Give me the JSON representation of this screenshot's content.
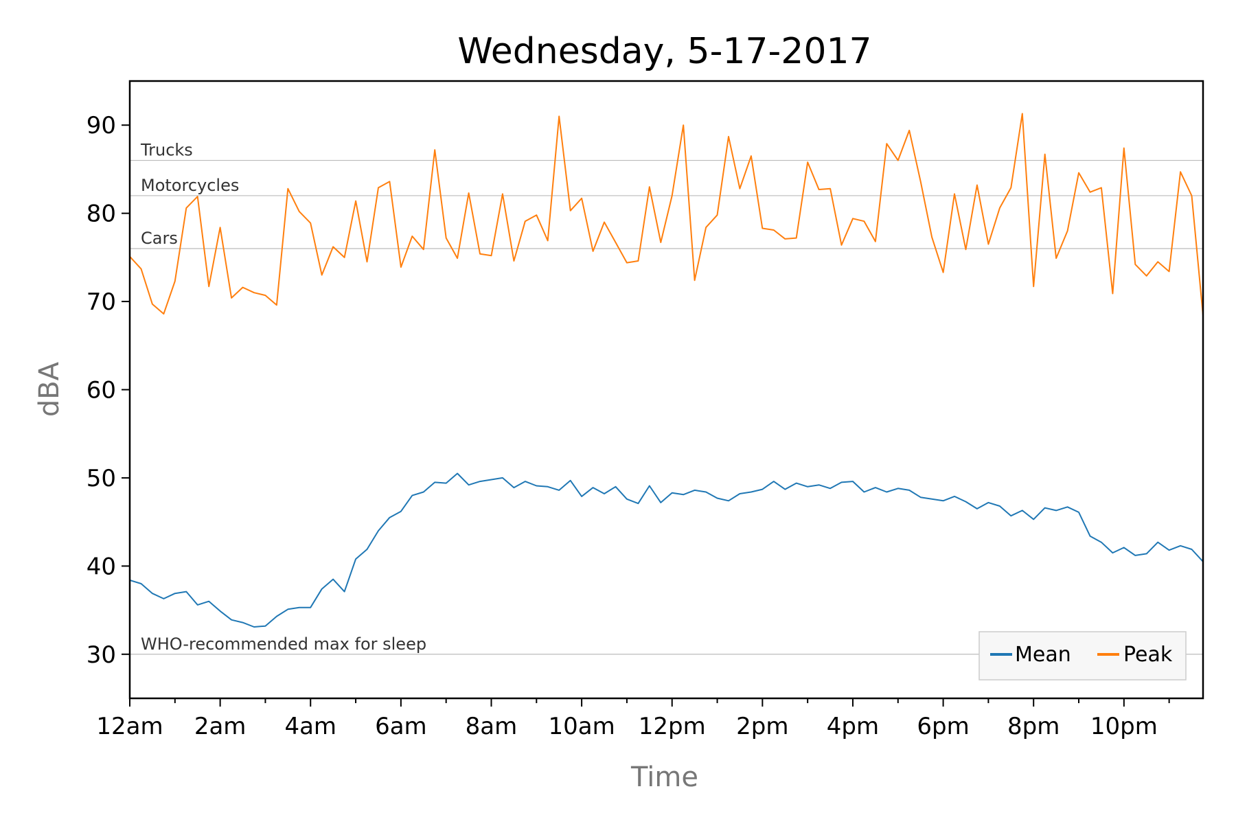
{
  "chart_data": {
    "type": "line",
    "title": "Wednesday, 5-17-2017",
    "xlabel": "Time",
    "ylabel": "dBA",
    "xlim": [
      0,
      23.75
    ],
    "ylim": [
      25,
      95
    ],
    "y_ticks": [
      30,
      40,
      50,
      60,
      70,
      80,
      90
    ],
    "x_ticks": [
      {
        "x": 0,
        "label": "12am"
      },
      {
        "x": 2,
        "label": "2am"
      },
      {
        "x": 4,
        "label": "4am"
      },
      {
        "x": 6,
        "label": "6am"
      },
      {
        "x": 8,
        "label": "8am"
      },
      {
        "x": 10,
        "label": "10am"
      },
      {
        "x": 12,
        "label": "12pm"
      },
      {
        "x": 14,
        "label": "2pm"
      },
      {
        "x": 16,
        "label": "4pm"
      },
      {
        "x": 18,
        "label": "6pm"
      },
      {
        "x": 20,
        "label": "8pm"
      },
      {
        "x": 22,
        "label": "10pm"
      }
    ],
    "grid": false,
    "legend_position": "lower-right",
    "reference_lines": [
      {
        "label": "Trucks",
        "y": 86
      },
      {
        "label": "Motorcycles",
        "y": 82
      },
      {
        "label": "Cars",
        "y": 76
      },
      {
        "label": "WHO-recommended max for sleep",
        "y": 30
      }
    ],
    "x_interval_hours": 0.25,
    "series": [
      {
        "name": "Mean",
        "color": "#1f77b4",
        "values": [
          38.4,
          38.0,
          36.9,
          36.3,
          36.9,
          37.1,
          35.6,
          36.0,
          34.9,
          33.9,
          33.6,
          33.1,
          33.2,
          34.3,
          35.1,
          35.3,
          35.3,
          37.4,
          38.5,
          37.1,
          40.8,
          41.9,
          44.0,
          45.5,
          46.2,
          48.0,
          48.4,
          49.5,
          49.4,
          50.5,
          49.2,
          49.6,
          49.8,
          50.0,
          48.9,
          49.6,
          49.1,
          49.0,
          48.6,
          49.7,
          47.9,
          48.9,
          48.2,
          49.0,
          47.6,
          47.1,
          49.1,
          47.2,
          48.3,
          48.1,
          48.6,
          48.4,
          47.7,
          47.4,
          48.2,
          48.4,
          48.7,
          49.6,
          48.7,
          49.4,
          49.0,
          49.2,
          48.8,
          49.5,
          49.6,
          48.4,
          48.9,
          48.4,
          48.8,
          48.6,
          47.8,
          47.6,
          47.4,
          47.9,
          47.3,
          46.5,
          47.2,
          46.8,
          45.7,
          46.3,
          45.3,
          46.6,
          46.3,
          46.7,
          46.1,
          43.4,
          42.7,
          41.5,
          42.1,
          41.2,
          41.4,
          42.7,
          41.8,
          42.3,
          41.9,
          40.5
        ]
      },
      {
        "name": "Peak",
        "color": "#ff7f0e",
        "values": [
          75.1,
          73.7,
          69.7,
          68.6,
          72.3,
          80.6,
          81.9,
          71.7,
          78.4,
          70.4,
          71.6,
          71.0,
          70.7,
          69.6,
          82.8,
          80.2,
          78.9,
          73.0,
          76.2,
          75.0,
          81.4,
          74.5,
          82.9,
          83.6,
          73.9,
          77.4,
          75.9,
          87.2,
          77.2,
          74.9,
          82.3,
          75.4,
          75.2,
          82.2,
          74.6,
          79.1,
          79.8,
          76.9,
          91.0,
          80.3,
          81.7,
          75.7,
          79.0,
          76.7,
          74.4,
          74.6,
          83.0,
          76.7,
          82.0,
          90.0,
          72.4,
          78.4,
          79.8,
          88.7,
          82.8,
          86.5,
          78.3,
          78.1,
          77.1,
          77.2,
          85.8,
          82.7,
          82.8,
          76.4,
          79.4,
          79.1,
          76.8,
          87.9,
          86.0,
          89.4,
          83.6,
          77.3,
          73.3,
          82.2,
          75.9,
          83.2,
          76.5,
          80.6,
          82.9,
          91.3,
          71.7,
          86.7,
          74.9,
          78.0,
          84.6,
          82.4,
          82.9,
          70.9,
          87.4,
          74.2,
          72.9,
          74.5,
          73.4,
          84.7,
          82.0,
          68.4
        ]
      }
    ]
  }
}
